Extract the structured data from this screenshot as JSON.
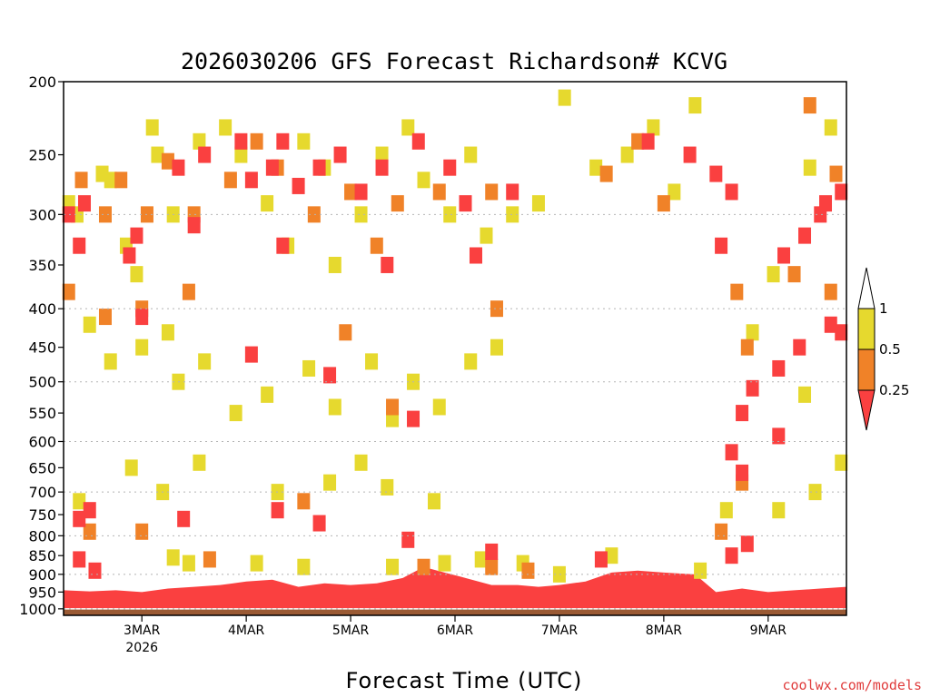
{
  "chart_data": {
    "type": "heatmap",
    "title": "2026030206 GFS Forecast Richardson# KCVG",
    "xlabel": "Forecast Time (UTC)",
    "ylabel": "",
    "credit": "coolwx.com/models",
    "x_ticks": [
      {
        "label": "3MAR",
        "sublabel": "2026",
        "day": 3
      },
      {
        "label": "4MAR",
        "sublabel": "",
        "day": 4
      },
      {
        "label": "5MAR",
        "sublabel": "",
        "day": 5
      },
      {
        "label": "6MAR",
        "sublabel": "",
        "day": 6
      },
      {
        "label": "7MAR",
        "sublabel": "",
        "day": 7
      },
      {
        "label": "8MAR",
        "sublabel": "",
        "day": 8
      },
      {
        "label": "9MAR",
        "sublabel": "",
        "day": 9
      }
    ],
    "x_range_days": [
      2.25,
      9.75
    ],
    "y_axis": {
      "scale": "log",
      "reversed": true,
      "unit": "hPa",
      "range": [
        200,
        1020
      ],
      "ticks": [
        200,
        250,
        300,
        350,
        400,
        450,
        500,
        550,
        600,
        650,
        700,
        750,
        800,
        850,
        900,
        950,
        1000
      ],
      "gridlines": [
        300,
        400,
        500,
        600,
        700,
        800,
        900,
        1000
      ]
    },
    "legend": {
      "placement": "right",
      "labels": [
        "1",
        "0.5",
        "0.25"
      ],
      "bins": [
        {
          "range": "0.5-1",
          "color": "#e6d92e"
        },
        {
          "range": "0.25-0.5",
          "color": "#f08228"
        },
        {
          "range": "<0.25",
          "color": "#fa4040"
        }
      ]
    },
    "colors": {
      "yellow": "#e6d92e",
      "orange": "#f08228",
      "red": "#fa4040",
      "ground": "#9a5a34",
      "grid": "#b4b4b4"
    },
    "series": [
      {
        "name": "0.5-1",
        "color": "#e6d92e",
        "cells": [
          {
            "t": 2.3,
            "p": 290
          },
          {
            "t": 2.38,
            "p": 300
          },
          {
            "t": 2.62,
            "p": 265
          },
          {
            "t": 2.7,
            "p": 270
          },
          {
            "t": 2.85,
            "p": 330
          },
          {
            "t": 2.95,
            "p": 360
          },
          {
            "t": 3.1,
            "p": 230
          },
          {
            "t": 3.15,
            "p": 250
          },
          {
            "t": 3.3,
            "p": 300
          },
          {
            "t": 3.55,
            "p": 240
          },
          {
            "t": 3.8,
            "p": 230
          },
          {
            "t": 3.95,
            "p": 250
          },
          {
            "t": 4.2,
            "p": 290
          },
          {
            "t": 4.4,
            "p": 330
          },
          {
            "t": 4.55,
            "p": 240
          },
          {
            "t": 4.75,
            "p": 260
          },
          {
            "t": 4.85,
            "p": 350
          },
          {
            "t": 5.1,
            "p": 300
          },
          {
            "t": 5.3,
            "p": 250
          },
          {
            "t": 5.55,
            "p": 230
          },
          {
            "t": 5.7,
            "p": 270
          },
          {
            "t": 5.95,
            "p": 300
          },
          {
            "t": 6.15,
            "p": 250
          },
          {
            "t": 6.3,
            "p": 320
          },
          {
            "t": 6.55,
            "p": 300
          },
          {
            "t": 6.8,
            "p": 290
          },
          {
            "t": 7.05,
            "p": 210
          },
          {
            "t": 7.35,
            "p": 260
          },
          {
            "t": 7.65,
            "p": 250
          },
          {
            "t": 7.9,
            "p": 230
          },
          {
            "t": 8.1,
            "p": 280
          },
          {
            "t": 8.3,
            "p": 215
          },
          {
            "t": 9.4,
            "p": 260
          },
          {
            "t": 9.6,
            "p": 230
          },
          {
            "t": 2.5,
            "p": 420
          },
          {
            "t": 2.7,
            "p": 470
          },
          {
            "t": 3.0,
            "p": 450
          },
          {
            "t": 3.25,
            "p": 430
          },
          {
            "t": 3.35,
            "p": 500
          },
          {
            "t": 3.6,
            "p": 470
          },
          {
            "t": 3.9,
            "p": 550
          },
          {
            "t": 4.2,
            "p": 520
          },
          {
            "t": 4.6,
            "p": 480
          },
          {
            "t": 4.85,
            "p": 540
          },
          {
            "t": 5.2,
            "p": 470
          },
          {
            "t": 5.4,
            "p": 560
          },
          {
            "t": 5.6,
            "p": 500
          },
          {
            "t": 5.85,
            "p": 540
          },
          {
            "t": 6.15,
            "p": 470
          },
          {
            "t": 6.4,
            "p": 450
          },
          {
            "t": 8.85,
            "p": 430
          },
          {
            "t": 9.05,
            "p": 360
          },
          {
            "t": 9.35,
            "p": 520
          },
          {
            "t": 9.7,
            "p": 640
          },
          {
            "t": 2.4,
            "p": 720
          },
          {
            "t": 2.9,
            "p": 650
          },
          {
            "t": 3.2,
            "p": 700
          },
          {
            "t": 3.55,
            "p": 640
          },
          {
            "t": 4.3,
            "p": 700
          },
          {
            "t": 4.8,
            "p": 680
          },
          {
            "t": 5.1,
            "p": 640
          },
          {
            "t": 5.35,
            "p": 690
          },
          {
            "t": 5.8,
            "p": 720
          },
          {
            "t": 8.6,
            "p": 740
          },
          {
            "t": 9.1,
            "p": 740
          },
          {
            "t": 9.45,
            "p": 700
          },
          {
            "t": 3.3,
            "p": 855
          },
          {
            "t": 3.45,
            "p": 870
          },
          {
            "t": 4.1,
            "p": 870
          },
          {
            "t": 4.55,
            "p": 880
          },
          {
            "t": 5.4,
            "p": 880
          },
          {
            "t": 5.9,
            "p": 870
          },
          {
            "t": 6.25,
            "p": 860
          },
          {
            "t": 6.65,
            "p": 870
          },
          {
            "t": 7.0,
            "p": 900
          },
          {
            "t": 7.5,
            "p": 850
          },
          {
            "t": 8.35,
            "p": 890
          }
        ]
      },
      {
        "name": "0.25-0.5",
        "color": "#f08228",
        "cells": [
          {
            "t": 2.42,
            "p": 270
          },
          {
            "t": 2.65,
            "p": 300
          },
          {
            "t": 2.8,
            "p": 270
          },
          {
            "t": 3.05,
            "p": 300
          },
          {
            "t": 3.25,
            "p": 255
          },
          {
            "t": 3.5,
            "p": 300
          },
          {
            "t": 3.85,
            "p": 270
          },
          {
            "t": 4.1,
            "p": 240
          },
          {
            "t": 4.3,
            "p": 260
          },
          {
            "t": 4.65,
            "p": 300
          },
          {
            "t": 5.0,
            "p": 280
          },
          {
            "t": 5.25,
            "p": 330
          },
          {
            "t": 5.45,
            "p": 290
          },
          {
            "t": 5.85,
            "p": 280
          },
          {
            "t": 6.35,
            "p": 280
          },
          {
            "t": 7.45,
            "p": 265
          },
          {
            "t": 7.75,
            "p": 240
          },
          {
            "t": 8.0,
            "p": 290
          },
          {
            "t": 9.4,
            "p": 215
          },
          {
            "t": 9.65,
            "p": 265
          },
          {
            "t": 2.3,
            "p": 380
          },
          {
            "t": 2.65,
            "p": 410
          },
          {
            "t": 3.0,
            "p": 400
          },
          {
            "t": 3.45,
            "p": 380
          },
          {
            "t": 4.95,
            "p": 430
          },
          {
            "t": 5.4,
            "p": 540
          },
          {
            "t": 6.4,
            "p": 400
          },
          {
            "t": 8.7,
            "p": 380
          },
          {
            "t": 8.8,
            "p": 450
          },
          {
            "t": 9.25,
            "p": 360
          },
          {
            "t": 9.6,
            "p": 380
          },
          {
            "t": 2.5,
            "p": 790
          },
          {
            "t": 3.0,
            "p": 790
          },
          {
            "t": 3.65,
            "p": 860
          },
          {
            "t": 4.55,
            "p": 720
          },
          {
            "t": 5.7,
            "p": 880
          },
          {
            "t": 6.35,
            "p": 880
          },
          {
            "t": 6.7,
            "p": 890
          },
          {
            "t": 8.55,
            "p": 790
          },
          {
            "t": 8.75,
            "p": 680
          }
        ]
      },
      {
        "name": "<0.25",
        "color": "#fa4040",
        "cells": [
          {
            "t": 2.3,
            "p": 300
          },
          {
            "t": 2.45,
            "p": 290
          },
          {
            "t": 2.88,
            "p": 340
          },
          {
            "t": 3.35,
            "p": 260
          },
          {
            "t": 3.6,
            "p": 250
          },
          {
            "t": 3.95,
            "p": 240
          },
          {
            "t": 4.05,
            "p": 270
          },
          {
            "t": 4.25,
            "p": 260
          },
          {
            "t": 4.35,
            "p": 240
          },
          {
            "t": 4.5,
            "p": 275
          },
          {
            "t": 4.7,
            "p": 260
          },
          {
            "t": 4.9,
            "p": 250
          },
          {
            "t": 5.1,
            "p": 280
          },
          {
            "t": 5.3,
            "p": 260
          },
          {
            "t": 5.65,
            "p": 240
          },
          {
            "t": 5.95,
            "p": 260
          },
          {
            "t": 6.1,
            "p": 290
          },
          {
            "t": 6.55,
            "p": 280
          },
          {
            "t": 7.85,
            "p": 240
          },
          {
            "t": 8.25,
            "p": 250
          },
          {
            "t": 8.5,
            "p": 265
          },
          {
            "t": 8.65,
            "p": 280
          },
          {
            "t": 9.55,
            "p": 290
          },
          {
            "t": 9.7,
            "p": 280
          },
          {
            "t": 2.4,
            "p": 330
          },
          {
            "t": 2.95,
            "p": 320
          },
          {
            "t": 3.5,
            "p": 310
          },
          {
            "t": 4.35,
            "p": 330
          },
          {
            "t": 5.35,
            "p": 350
          },
          {
            "t": 6.2,
            "p": 340
          },
          {
            "t": 8.55,
            "p": 330
          },
          {
            "t": 9.15,
            "p": 340
          },
          {
            "t": 9.35,
            "p": 320
          },
          {
            "t": 9.5,
            "p": 300
          },
          {
            "t": 8.75,
            "p": 550
          },
          {
            "t": 8.85,
            "p": 510
          },
          {
            "t": 9.1,
            "p": 480
          },
          {
            "t": 9.3,
            "p": 450
          },
          {
            "t": 9.1,
            "p": 590
          },
          {
            "t": 9.6,
            "p": 420
          },
          {
            "t": 9.7,
            "p": 430
          },
          {
            "t": 8.65,
            "p": 620
          },
          {
            "t": 8.75,
            "p": 660
          },
          {
            "t": 3.0,
            "p": 410
          },
          {
            "t": 4.05,
            "p": 460
          },
          {
            "t": 4.8,
            "p": 490
          },
          {
            "t": 5.6,
            "p": 560
          },
          {
            "t": 2.4,
            "p": 760
          },
          {
            "t": 2.5,
            "p": 740
          },
          {
            "t": 3.4,
            "p": 760
          },
          {
            "t": 4.3,
            "p": 740
          },
          {
            "t": 4.7,
            "p": 770
          },
          {
            "t": 5.55,
            "p": 810
          },
          {
            "t": 8.65,
            "p": 850
          },
          {
            "t": 8.8,
            "p": 820
          },
          {
            "t": 2.4,
            "p": 860
          },
          {
            "t": 2.55,
            "p": 890
          },
          {
            "t": 6.35,
            "p": 840
          },
          {
            "t": 7.4,
            "p": 860
          }
        ]
      }
    ],
    "low_level_layer": [
      {
        "t": 2.25,
        "p": 945
      },
      {
        "t": 2.5,
        "p": 948
      },
      {
        "t": 2.75,
        "p": 945
      },
      {
        "t": 3.0,
        "p": 950
      },
      {
        "t": 3.25,
        "p": 940
      },
      {
        "t": 3.5,
        "p": 935
      },
      {
        "t": 3.75,
        "p": 930
      },
      {
        "t": 4.0,
        "p": 920
      },
      {
        "t": 4.25,
        "p": 915
      },
      {
        "t": 4.5,
        "p": 935
      },
      {
        "t": 4.75,
        "p": 925
      },
      {
        "t": 5.0,
        "p": 930
      },
      {
        "t": 5.25,
        "p": 925
      },
      {
        "t": 5.5,
        "p": 910
      },
      {
        "t": 5.7,
        "p": 880
      },
      {
        "t": 5.9,
        "p": 895
      },
      {
        "t": 6.1,
        "p": 910
      },
      {
        "t": 6.35,
        "p": 930
      },
      {
        "t": 6.6,
        "p": 930
      },
      {
        "t": 6.8,
        "p": 935
      },
      {
        "t": 7.0,
        "p": 930
      },
      {
        "t": 7.25,
        "p": 920
      },
      {
        "t": 7.5,
        "p": 895
      },
      {
        "t": 7.75,
        "p": 890
      },
      {
        "t": 8.0,
        "p": 895
      },
      {
        "t": 8.3,
        "p": 900
      },
      {
        "t": 8.5,
        "p": 950
      },
      {
        "t": 8.75,
        "p": 940
      },
      {
        "t": 9.0,
        "p": 950
      },
      {
        "t": 9.25,
        "p": 945
      },
      {
        "t": 9.5,
        "p": 940
      },
      {
        "t": 9.75,
        "p": 935
      }
    ],
    "surface_pressure_hpa": 1000
  }
}
